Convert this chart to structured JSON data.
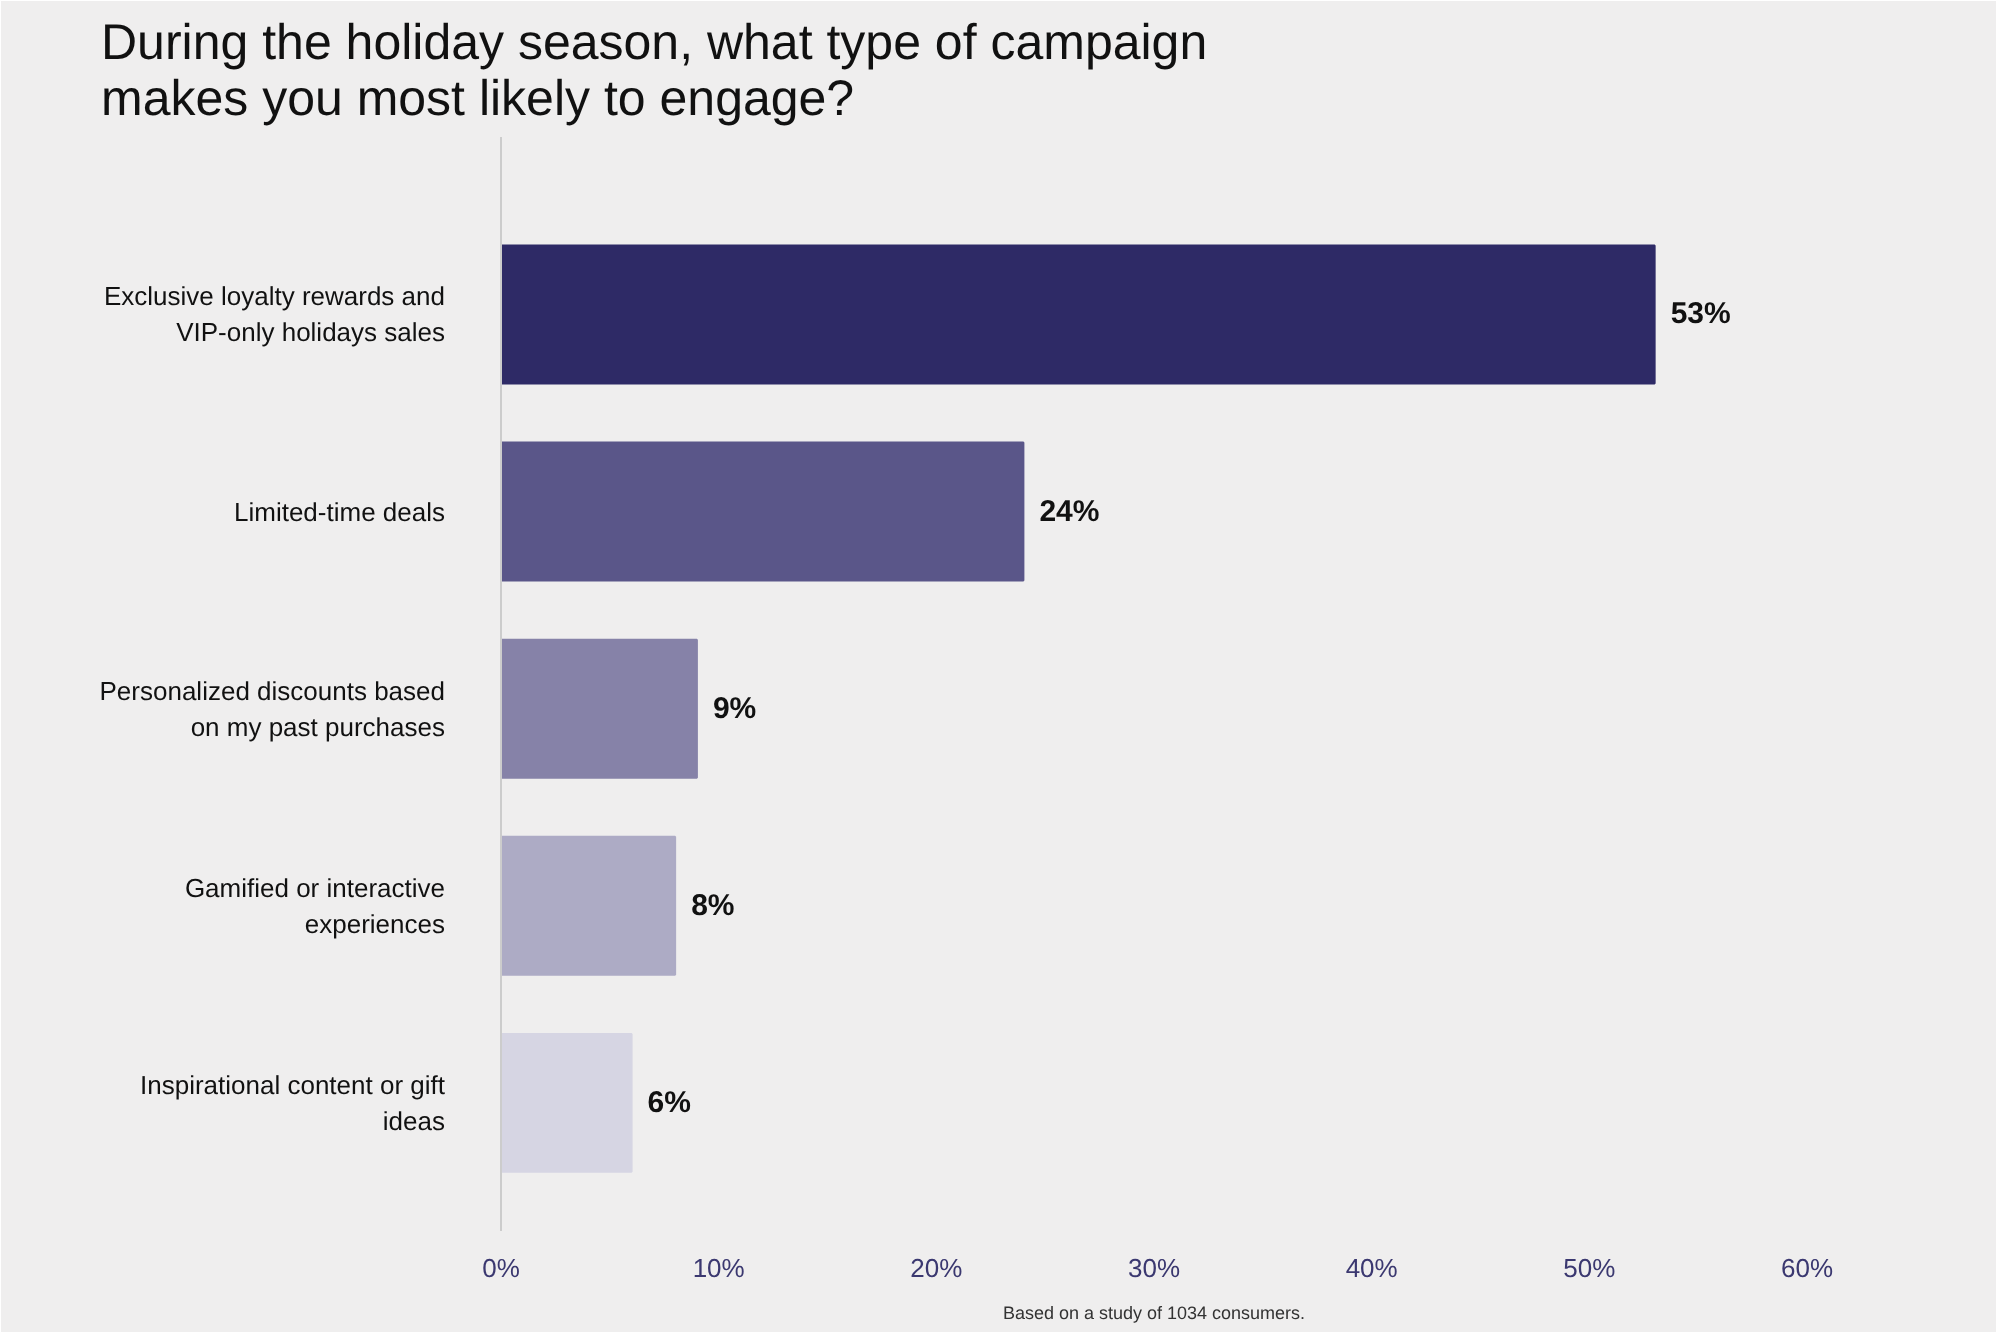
{
  "chart_data": {
    "type": "bar",
    "orientation": "horizontal",
    "title": "During the holiday season, what type of campaign makes you most likely to engage?",
    "categories": [
      "Exclusive loyalty rewards and VIP-only holidays sales",
      "Limited-time deals",
      "Personalized discounts based on my past purchases",
      "Gamified or interactive experiences",
      "Inspirational content or gift ideas"
    ],
    "values": [
      53,
      24,
      9,
      8,
      6
    ],
    "colors": [
      "#2e2a66",
      "#5a5689",
      "#8682a8",
      "#adabc5",
      "#d6d5e3"
    ],
    "value_labels": [
      "53%",
      "24%",
      "9%",
      "8%",
      "6%"
    ],
    "xlim": [
      0,
      60
    ],
    "xticks": [
      {
        "value": 0,
        "label": "0%"
      },
      {
        "value": 10,
        "label": "10%"
      },
      {
        "value": 20,
        "label": "20%"
      },
      {
        "value": 30,
        "label": "30%"
      },
      {
        "value": 40,
        "label": "40%"
      },
      {
        "value": 50,
        "label": "50%"
      },
      {
        "value": 60,
        "label": "60%"
      }
    ],
    "grid": false,
    "annotations": [
      "Based on a study of 1034 consumers."
    ]
  }
}
